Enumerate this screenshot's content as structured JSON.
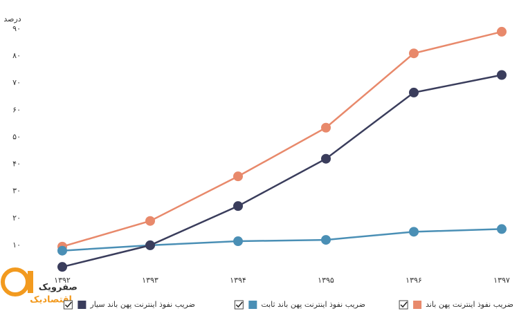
{
  "chart_data": {
    "type": "line",
    "y_label": "درصد",
    "categories": [
      "۱۳۹۲",
      "۱۳۹۳",
      "۱۳۹۴",
      "۱۳۹۵",
      "۱۳۹۶",
      "۱۳۹۷"
    ],
    "series": [
      {
        "name": "ضریب نفوذ اینترنت پهن باند",
        "color": "#e8896b",
        "values": [
          9.5,
          19,
          35.5,
          53.5,
          81,
          89
        ]
      },
      {
        "name": "ضریب نفوذ اینترنت پهن باند ثابت",
        "color": "#4a8fb5",
        "values": [
          8,
          10,
          11.5,
          12,
          15,
          16
        ]
      },
      {
        "name": "ضریب نفوذ اینترنت پهن باند سیار",
        "color": "#3a3d5c",
        "values": [
          2,
          10,
          24.5,
          42,
          66.5,
          73
        ]
      }
    ],
    "ylim": [
      0,
      90
    ],
    "yticks": [
      {
        "value": 10,
        "label": "۱۰"
      },
      {
        "value": 20,
        "label": "۲۰"
      },
      {
        "value": 30,
        "label": "۳۰"
      },
      {
        "value": 40,
        "label": "۴۰"
      },
      {
        "value": 50,
        "label": "۵۰"
      },
      {
        "value": 60,
        "label": "۶۰"
      },
      {
        "value": 70,
        "label": "۷۰"
      },
      {
        "value": 80,
        "label": "۸۰"
      },
      {
        "value": 90,
        "label": "۹۰"
      }
    ],
    "grid": false,
    "legend": "bottom",
    "logo": {
      "name": "صفرویک",
      "sub": "اقتصادیک"
    }
  }
}
